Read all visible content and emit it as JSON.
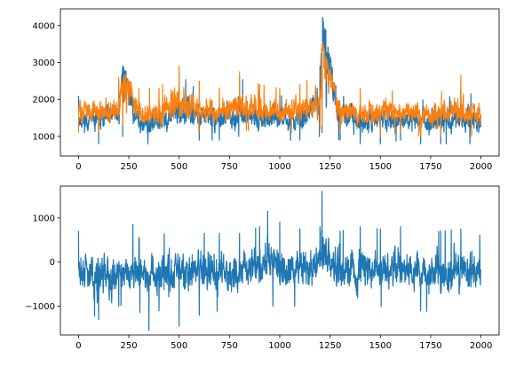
{
  "colors": {
    "series_blue": "#1f77b4",
    "series_orange": "#ff7f0e"
  },
  "chart_data": [
    {
      "type": "line",
      "title": "",
      "xlabel": "",
      "ylabel": "",
      "xlim": [
        -90,
        2090
      ],
      "ylim": [
        470,
        4450
      ],
      "x_ticks": [
        0,
        250,
        500,
        750,
        1000,
        1250,
        1500,
        1750,
        2000
      ],
      "x_tick_labels": [
        "0",
        "250",
        "500",
        "750",
        "1000",
        "1250",
        "1500",
        "1750",
        "2000"
      ],
      "y_ticks": [
        1000,
        2000,
        3000,
        4000
      ],
      "y_tick_labels": [
        "1000",
        "2000",
        "3000",
        "4000"
      ],
      "grid": false,
      "n_points": 2000,
      "series": [
        {
          "color": "#1f77b4",
          "x": [
            0,
            100,
            200,
            220,
            300,
            400,
            500,
            600,
            700,
            800,
            900,
            1000,
            1100,
            1200,
            1210,
            1300,
            1400,
            1500,
            1600,
            1700,
            1800,
            1900,
            2000
          ],
          "values": [
            1400,
            1450,
            1600,
            2900,
            1350,
            1350,
            1650,
            1550,
            1450,
            1600,
            1500,
            1450,
            1500,
            1900,
            4300,
            1550,
            1400,
            1450,
            1450,
            1400,
            1400,
            1450,
            1350
          ],
          "band": [
            [
              900,
              2100
            ],
            [
              800,
              1900
            ],
            [
              1000,
              2500
            ],
            [
              1000,
              3200
            ],
            [
              800,
              2000
            ],
            [
              800,
              2000
            ],
            [
              900,
              2700
            ],
            [
              900,
              2200
            ],
            [
              900,
              2000
            ],
            [
              1000,
              2600
            ],
            [
              900,
              2200
            ],
            [
              900,
              2100
            ],
            [
              900,
              2100
            ],
            [
              1000,
              2900
            ],
            [
              1100,
              4350
            ],
            [
              900,
              2100
            ],
            [
              800,
              2000
            ],
            [
              800,
              2100
            ],
            [
              900,
              2000
            ],
            [
              800,
              2000
            ],
            [
              800,
              1900
            ],
            [
              800,
              2300
            ],
            [
              800,
              2000
            ]
          ]
        },
        {
          "color": "#ff7f0e",
          "x": [
            0,
            100,
            200,
            220,
            300,
            400,
            500,
            600,
            700,
            800,
            900,
            1000,
            1100,
            1200,
            1210,
            1300,
            1400,
            1500,
            1600,
            1700,
            1800,
            1900,
            2000
          ],
          "values": [
            1700,
            1650,
            1700,
            2700,
            1550,
            1600,
            1850,
            1750,
            1650,
            1850,
            1700,
            1650,
            1700,
            1950,
            3500,
            1700,
            1600,
            1650,
            1650,
            1600,
            1600,
            1650,
            1600
          ],
          "band": [
            [
              1100,
              2200
            ],
            [
              1100,
              2200
            ],
            [
              1200,
              2600
            ],
            [
              1300,
              3500
            ],
            [
              1000,
              2300
            ],
            [
              1000,
              2300
            ],
            [
              1100,
              2900
            ],
            [
              1100,
              2500
            ],
            [
              1100,
              2300
            ],
            [
              1200,
              2750
            ],
            [
              1100,
              2400
            ],
            [
              1100,
              2300
            ],
            [
              1100,
              2400
            ],
            [
              1200,
              2700
            ],
            [
              1300,
              3650
            ],
            [
              1100,
              2300
            ],
            [
              1000,
              2300
            ],
            [
              1000,
              2300
            ],
            [
              1100,
              2200
            ],
            [
              1000,
              2200
            ],
            [
              1000,
              2200
            ],
            [
              1000,
              2650
            ],
            [
              1000,
              2300
            ]
          ]
        }
      ]
    },
    {
      "type": "line",
      "title": "",
      "xlabel": "",
      "ylabel": "",
      "xlim": [
        -90,
        2090
      ],
      "ylim": [
        -1650,
        1720
      ],
      "x_ticks": [
        0,
        250,
        500,
        750,
        1000,
        1250,
        1500,
        1750,
        2000
      ],
      "x_tick_labels": [
        "0",
        "250",
        "500",
        "750",
        "1000",
        "1250",
        "1500",
        "1750",
        "2000"
      ],
      "y_ticks": [
        -1000,
        0,
        1000
      ],
      "y_tick_labels": [
        "−1000",
        "0",
        "1000"
      ],
      "grid": false,
      "n_points": 2000,
      "series": [
        {
          "color": "#1f77b4",
          "x": [
            0,
            100,
            200,
            270,
            300,
            350,
            400,
            500,
            600,
            700,
            800,
            900,
            940,
            1000,
            1100,
            1200,
            1210,
            1300,
            1400,
            1500,
            1600,
            1700,
            1800,
            1900,
            2000
          ],
          "values": [
            -250,
            -250,
            -250,
            -150,
            -300,
            -350,
            -250,
            -250,
            -200,
            -250,
            -200,
            -150,
            0,
            -200,
            -200,
            -150,
            100,
            -200,
            -250,
            -200,
            -200,
            -200,
            -250,
            -200,
            -250
          ],
          "band": [
            [
              -900,
              700
            ],
            [
              -1300,
              600
            ],
            [
              -1000,
              500
            ],
            [
              -900,
              850
            ],
            [
              -1100,
              550
            ],
            [
              -1550,
              500
            ],
            [
              -1100,
              600
            ],
            [
              -1450,
              750
            ],
            [
              -1200,
              650
            ],
            [
              -1100,
              650
            ],
            [
              -1000,
              650
            ],
            [
              -900,
              800
            ],
            [
              -1000,
              1150
            ],
            [
              -1000,
              900
            ],
            [
              -1000,
              750
            ],
            [
              -950,
              800
            ],
            [
              -700,
              1600
            ],
            [
              -1000,
              700
            ],
            [
              -1200,
              800
            ],
            [
              -1000,
              750
            ],
            [
              -1000,
              800
            ],
            [
              -1100,
              650
            ],
            [
              -1150,
              700
            ],
            [
              -1100,
              750
            ],
            [
              -1100,
              600
            ]
          ]
        }
      ]
    }
  ]
}
